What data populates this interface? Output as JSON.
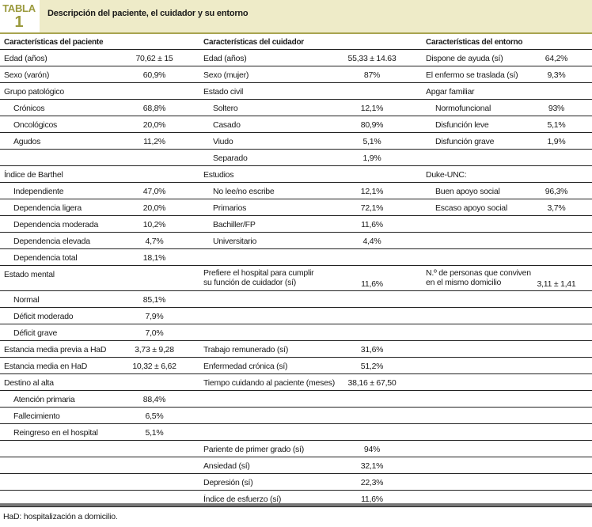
{
  "header": {
    "tabla_label": "TABLA",
    "tabla_number": "1",
    "title": "Descripción del paciente, el cuidador y su entorno"
  },
  "colors": {
    "band": "#eeebc8",
    "accent": "#9b9a3e",
    "rule": "#a8a450"
  },
  "columns": [
    "Características del paciente",
    "Características del cuidador",
    "Características del entorno"
  ],
  "rows": [
    [
      {
        "label": "Edad (años)",
        "value": "70,62 ± 15"
      },
      {
        "label": "Edad (años)",
        "value": "55,33 ± 14.63"
      },
      {
        "label": "Dispone de ayuda (sí)",
        "value": "64,2%"
      }
    ],
    [
      {
        "label": "Sexo (varón)",
        "value": "60,9%"
      },
      {
        "label": "Sexo (mujer)",
        "value": "87%"
      },
      {
        "label": "El enfermo se traslada (sí)",
        "value": "9,3%"
      }
    ],
    [
      {
        "label": "Grupo patológico"
      },
      {
        "label": "Estado civil"
      },
      {
        "label": "Apgar familiar"
      }
    ],
    [
      {
        "label": "Crónicos",
        "value": "68,8%",
        "indent": true
      },
      {
        "label": "Soltero",
        "value": "12,1%",
        "indent": true
      },
      {
        "label": "Normofuncional",
        "value": "93%",
        "indent": true
      }
    ],
    [
      {
        "label": "Oncológicos",
        "value": "20,0%",
        "indent": true
      },
      {
        "label": "Casado",
        "value": "80,9%",
        "indent": true
      },
      {
        "label": "Disfunción leve",
        "value": "5,1%",
        "indent": true
      }
    ],
    [
      {
        "label": "Agudos",
        "value": "11,2%",
        "indent": true
      },
      {
        "label": "Viudo",
        "value": "5,1%",
        "indent": true
      },
      {
        "label": "Disfunción grave",
        "value": "1,9%",
        "indent": true
      }
    ],
    [
      {},
      {
        "label": "Separado",
        "value": "1,9%",
        "indent": true
      },
      {}
    ],
    [
      {
        "label": "Índice de Barthel"
      },
      {
        "label": "Estudios"
      },
      {
        "label": "Duke-UNC:"
      }
    ],
    [
      {
        "label": "Independiente",
        "value": "47,0%",
        "indent": true
      },
      {
        "label": "No lee/no escribe",
        "value": "12,1%",
        "indent": true
      },
      {
        "label": "Buen apoyo social",
        "value": "96,3%",
        "indent": true
      }
    ],
    [
      {
        "label": "Dependencia ligera",
        "value": "20,0%",
        "indent": true
      },
      {
        "label": "Primarios",
        "value": "72,1%",
        "indent": true
      },
      {
        "label": "Escaso apoyo social",
        "value": "3,7%",
        "indent": true
      }
    ],
    [
      {
        "label": "Dependencia moderada",
        "value": "10,2%",
        "indent": true
      },
      {
        "label": "Bachiller/FP",
        "value": "11,6%",
        "indent": true
      },
      {}
    ],
    [
      {
        "label": "Dependencia elevada",
        "value": "4,7%",
        "indent": true
      },
      {
        "label": "Universitario",
        "value": "4,4%",
        "indent": true
      },
      {}
    ],
    [
      {
        "label": "Dependencia total",
        "value": "18,1%",
        "indent": true
      },
      {},
      {}
    ],
    [
      {
        "label": "Estado mental"
      },
      {
        "label": "Prefiere el hospital para cumplir",
        "label2": " su función de cuidador (sí)",
        "value": "11,6%"
      },
      {
        "label": "N.º de personas que conviven",
        "label2": "en el mismo domicilio",
        "value": "3,11 ± 1,41"
      }
    ],
    [
      {
        "label": "Normal",
        "value": "85,1%",
        "indent": true
      },
      {},
      {}
    ],
    [
      {
        "label": "Déficit moderado",
        "value": "7,9%",
        "indent": true
      },
      {},
      {}
    ],
    [
      {
        "label": "Déficit grave",
        "value": "7,0%",
        "indent": true
      },
      {},
      {}
    ],
    [
      {
        "label": "Estancia media previa a HaD",
        "value": "3,73 ± 9,28"
      },
      {
        "label": "Trabajo remunerado (sí)",
        "value": "31,6%"
      },
      {}
    ],
    [
      {
        "label": "Estancia media en HaD",
        "value": "10,32 ± 6,62"
      },
      {
        "label": "Enfermedad crónica (sí)",
        "value": "51,2%"
      },
      {}
    ],
    [
      {
        "label": "Destino al alta"
      },
      {
        "label": "Tiempo cuidando al paciente (meses)",
        "value": "38,16 ± 67,50"
      },
      {}
    ],
    [
      {
        "label": "Atención primaria",
        "value": "88,4%",
        "indent": true
      },
      {},
      {}
    ],
    [
      {
        "label": "Fallecimiento",
        "value": "6,5%",
        "indent": true
      },
      {},
      {}
    ],
    [
      {
        "label": "Reingreso en el hospital",
        "value": "5,1%",
        "indent": true
      },
      {},
      {}
    ],
    [
      {},
      {
        "label": "Pariente de primer grado (sí)",
        "value": "94%"
      },
      {}
    ],
    [
      {},
      {
        "label": "Ansiedad (sí)",
        "value": "32,1%"
      },
      {}
    ],
    [
      {},
      {
        "label": "Depresión (sí)",
        "value": "22,3%"
      },
      {}
    ],
    [
      {},
      {
        "label": "Índice de esfuerzo (sí)",
        "value": "11,6%"
      },
      {}
    ]
  ],
  "footnote": "HaD: hospitalización a domicilio."
}
